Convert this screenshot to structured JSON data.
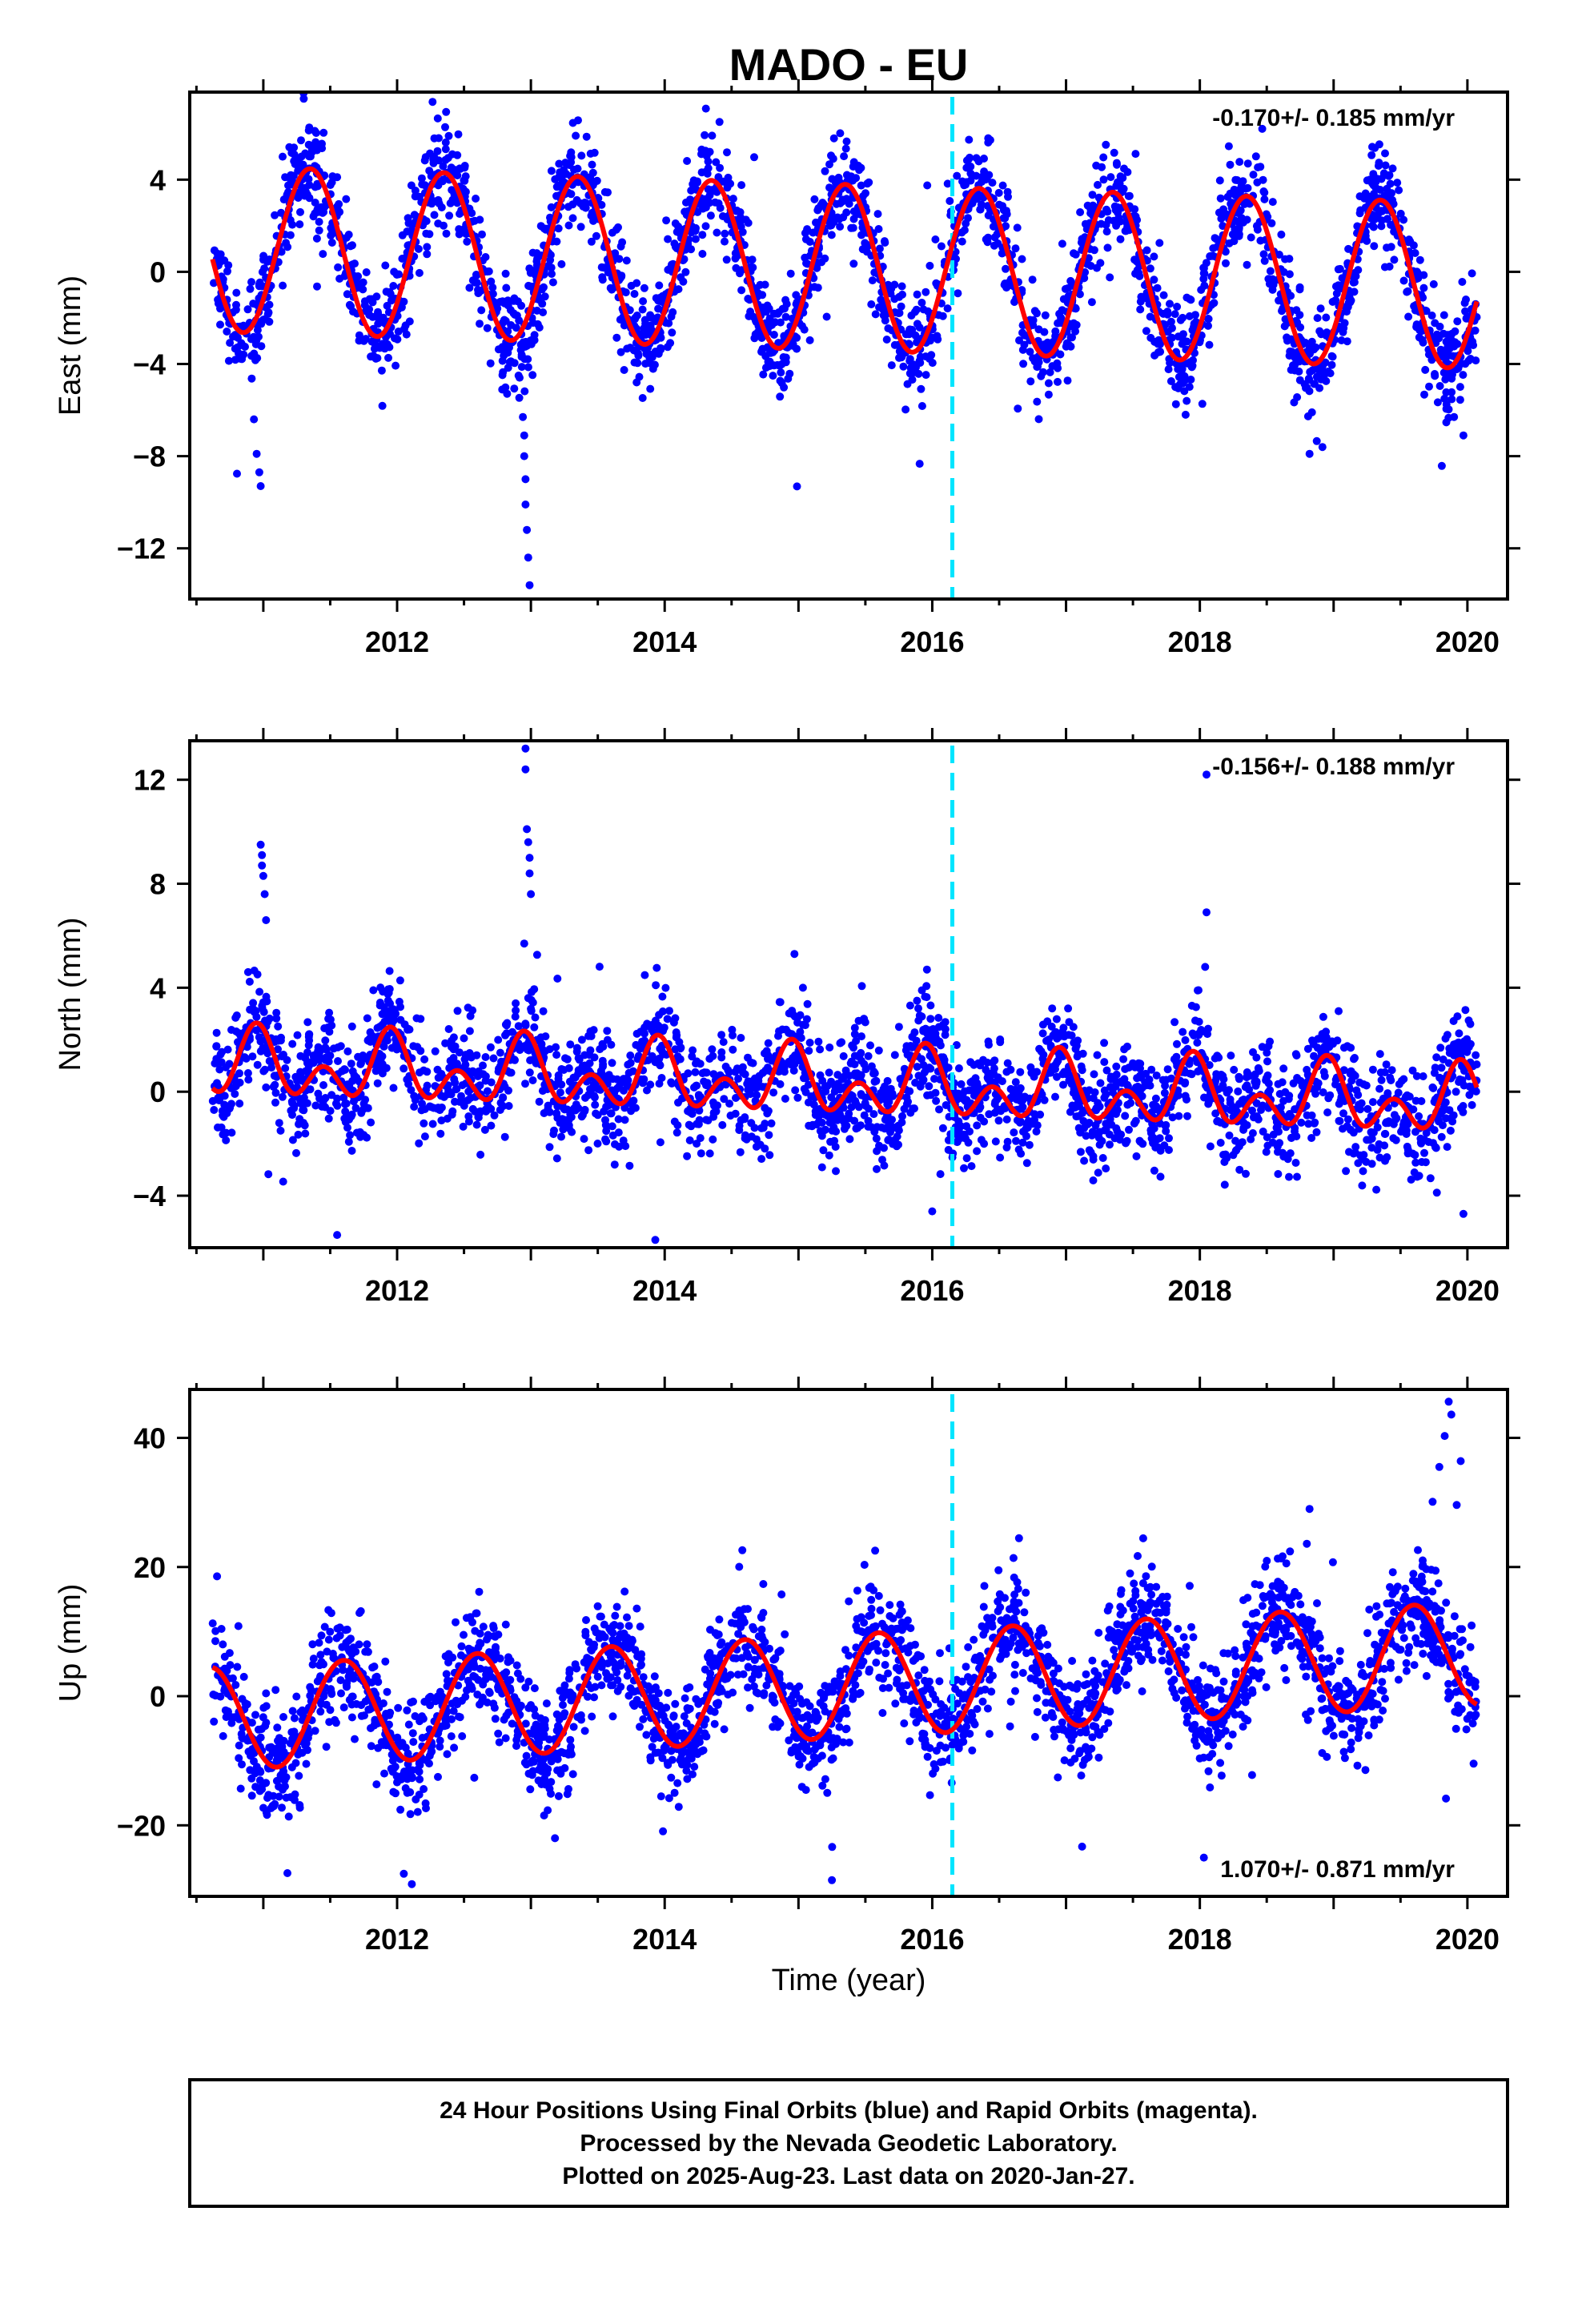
{
  "title": "MADO - EU",
  "x_axis_label": "Time (year)",
  "footer": {
    "lines": [
      "24 Hour Positions Using Final Orbits (blue) and Rapid Orbits (magenta).",
      "Processed by the Nevada Geodetic Laboratory.",
      "Plotted on 2025-Aug-23. Last data on 2020-Jan-27."
    ]
  },
  "colors": {
    "points": "#0000ff",
    "fit": "#ff0000",
    "event_line": "#00e5ff",
    "frame": "#000000"
  },
  "chart_data": [
    {
      "type": "scatter",
      "name": "east",
      "ylabel": "East (mm)",
      "rate_text": "-0.170+/- 0.185 mm/yr",
      "rate_position": "top-right",
      "xlim": [
        2010.45,
        2020.3
      ],
      "ylim": [
        -14.2,
        7.8
      ],
      "xticks": [
        2012,
        2014,
        2016,
        2018,
        2020
      ],
      "yticks": [
        4,
        0,
        -4,
        -8,
        -12
      ],
      "ytick_labels": [
        "4",
        "0",
        "−4",
        "−8",
        "−12"
      ],
      "event_x": 2016.15,
      "data_span": [
        2010.62,
        2020.07
      ],
      "fit": {
        "offset": 1.0,
        "trend": -0.17,
        "annual_amp": 3.6,
        "annual_phase_year": 2011.35,
        "semi_amp": 0.0,
        "semi_phase_year": 2011.0
      },
      "scatter": {
        "points_per_year": 280,
        "noise_sd": 1.1
      },
      "outliers": [
        [
          2010.93,
          -6.4
        ],
        [
          2010.95,
          -7.9
        ],
        [
          2010.97,
          -8.7
        ],
        [
          2010.98,
          -9.3
        ],
        [
          2012.94,
          -6.3
        ],
        [
          2012.95,
          -7.1
        ],
        [
          2012.95,
          -8.0
        ],
        [
          2012.96,
          -9.0
        ],
        [
          2012.96,
          -10.1
        ],
        [
          2012.97,
          -11.2
        ],
        [
          2012.98,
          -12.4
        ],
        [
          2012.99,
          -13.6
        ],
        [
          2018.82,
          -7.9
        ],
        [
          2019.97,
          -7.1
        ],
        [
          2019.9,
          -6.3
        ]
      ]
    },
    {
      "type": "scatter",
      "name": "north",
      "ylabel": "North (mm)",
      "rate_text": "-0.156+/- 0.188 mm/yr",
      "rate_position": "top-right",
      "xlim": [
        2010.45,
        2020.3
      ],
      "ylim": [
        -6.0,
        13.5
      ],
      "xticks": [
        2012,
        2014,
        2016,
        2018,
        2020
      ],
      "yticks": [
        12,
        8,
        4,
        0,
        -4
      ],
      "ytick_labels": [
        "12",
        "8",
        "4",
        "0",
        "−4"
      ],
      "event_x": 2016.15,
      "data_span": [
        2010.62,
        2020.07
      ],
      "fit": {
        "offset": 1.0,
        "trend": -0.156,
        "annual_amp": 0.8,
        "annual_phase_year": 2010.95,
        "semi_amp": 0.9,
        "semi_phase_year": 2011.45
      },
      "scatter": {
        "points_per_year": 280,
        "noise_sd": 1.0
      },
      "outliers": [
        [
          2010.98,
          9.5
        ],
        [
          2010.99,
          9.1
        ],
        [
          2010.99,
          8.7
        ],
        [
          2011.0,
          8.3
        ],
        [
          2011.01,
          7.6
        ],
        [
          2011.02,
          6.6
        ],
        [
          2012.96,
          13.2
        ],
        [
          2012.96,
          12.4
        ],
        [
          2012.97,
          10.1
        ],
        [
          2012.98,
          9.6
        ],
        [
          2012.99,
          9.0
        ],
        [
          2012.99,
          8.4
        ],
        [
          2013.0,
          7.6
        ],
        [
          2012.95,
          5.7
        ],
        [
          2014.97,
          5.3
        ],
        [
          2015.96,
          4.7
        ],
        [
          2018.05,
          12.2
        ],
        [
          2018.05,
          6.9
        ],
        [
          2018.04,
          4.8
        ],
        [
          2013.93,
          -5.7
        ],
        [
          2016.0,
          -4.6
        ],
        [
          2019.97,
          -4.7
        ]
      ]
    },
    {
      "type": "scatter",
      "name": "up",
      "ylabel": "Up (mm)",
      "rate_text": "1.070+/- 0.871 mm/yr",
      "rate_position": "bottom-right",
      "xlim": [
        2010.45,
        2020.3
      ],
      "ylim": [
        -31.0,
        47.5
      ],
      "xticks": [
        2012,
        2014,
        2016,
        2018,
        2020
      ],
      "yticks": [
        40,
        20,
        0,
        -20
      ],
      "ytick_labels": [
        "40",
        "20",
        "0",
        "−20"
      ],
      "event_x": 2016.15,
      "data_span": [
        2010.62,
        2020.07
      ],
      "fit": {
        "offset": -3.5,
        "trend": 1.07,
        "annual_amp": 8.0,
        "annual_phase_year": 2011.6,
        "semi_amp": 0.0,
        "semi_phase_year": 2011.0
      },
      "scatter": {
        "points_per_year": 280,
        "noise_sd": 4.2
      },
      "outliers": [
        [
          2019.86,
          45.6
        ],
        [
          2019.88,
          43.6
        ],
        [
          2019.83,
          40.3
        ],
        [
          2019.79,
          35.5
        ],
        [
          2019.95,
          36.4
        ],
        [
          2019.74,
          30.1
        ],
        [
          2019.92,
          29.6
        ],
        [
          2018.82,
          29.0
        ],
        [
          2018.8,
          23.6
        ],
        [
          2014.58,
          22.6
        ],
        [
          2012.11,
          -29.1
        ],
        [
          2012.05,
          -27.5
        ],
        [
          2011.18,
          -27.4
        ],
        [
          2015.25,
          -28.5
        ],
        [
          2013.18,
          -22.0
        ],
        [
          2018.03,
          -25.0
        ],
        [
          2017.12,
          -23.3
        ]
      ]
    }
  ]
}
